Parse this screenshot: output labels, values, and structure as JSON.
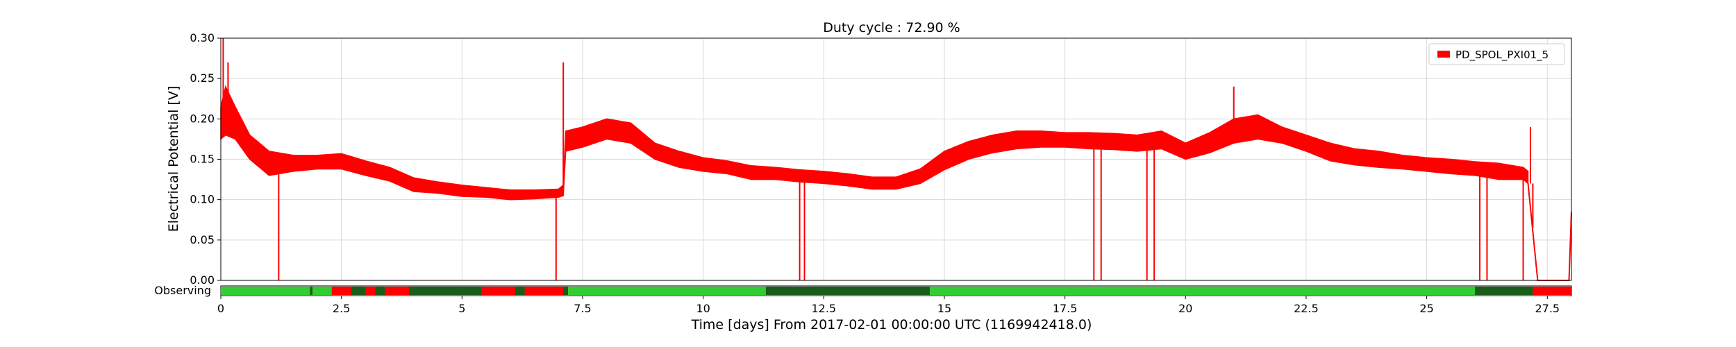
{
  "chart_data": {
    "type": "line",
    "title": "Duty cycle : 72.90 %",
    "xlabel": "Time [days] From 2017-02-01 00:00:00 UTC (1169942418.0)",
    "ylabel": "Electrical Potential [V]",
    "xlim": [
      0,
      28
    ],
    "ylim": [
      0,
      0.3
    ],
    "x_ticks": [
      0,
      2.5,
      5,
      7.5,
      10,
      12.5,
      15,
      17.5,
      20,
      22.5,
      25,
      27.5
    ],
    "x_tick_labels": [
      "0",
      "2.5",
      "5",
      "7.5",
      "10",
      "12.5",
      "15",
      "17.5",
      "20",
      "22.5",
      "25",
      "27.5"
    ],
    "y_ticks": [
      0,
      0.05,
      0.1,
      0.15,
      0.2,
      0.25,
      0.3
    ],
    "y_tick_labels": [
      "0.00",
      "0.05",
      "0.10",
      "0.15",
      "0.20",
      "0.25",
      "0.30"
    ],
    "grid": true,
    "legend_position": "top-right",
    "series": [
      {
        "name": "PD_SPOL_PXI01_5",
        "color": "#ff0000",
        "envelope": [
          [
            0.0,
            0.175,
            0.215
          ],
          [
            0.1,
            0.18,
            0.24
          ],
          [
            0.3,
            0.175,
            0.215
          ],
          [
            0.6,
            0.15,
            0.18
          ],
          [
            1.0,
            0.13,
            0.16
          ],
          [
            1.5,
            0.135,
            0.155
          ],
          [
            2.0,
            0.138,
            0.155
          ],
          [
            2.5,
            0.138,
            0.157
          ],
          [
            3.0,
            0.13,
            0.148
          ],
          [
            3.5,
            0.123,
            0.14
          ],
          [
            4.0,
            0.11,
            0.127
          ],
          [
            4.5,
            0.108,
            0.122
          ],
          [
            5.0,
            0.104,
            0.118
          ],
          [
            5.5,
            0.103,
            0.115
          ],
          [
            6.0,
            0.1,
            0.112
          ],
          [
            6.5,
            0.101,
            0.112
          ],
          [
            7.0,
            0.103,
            0.113
          ],
          [
            7.1,
            0.105,
            0.118
          ],
          [
            7.15,
            0.16,
            0.185
          ],
          [
            7.5,
            0.165,
            0.19
          ],
          [
            8.0,
            0.175,
            0.2
          ],
          [
            8.5,
            0.17,
            0.195
          ],
          [
            9.0,
            0.15,
            0.17
          ],
          [
            9.5,
            0.14,
            0.16
          ],
          [
            10.0,
            0.135,
            0.152
          ],
          [
            10.5,
            0.132,
            0.148
          ],
          [
            11.0,
            0.125,
            0.142
          ],
          [
            11.5,
            0.125,
            0.14
          ],
          [
            12.0,
            0.122,
            0.137
          ],
          [
            12.5,
            0.12,
            0.135
          ],
          [
            13.0,
            0.117,
            0.132
          ],
          [
            13.5,
            0.113,
            0.128
          ],
          [
            14.0,
            0.113,
            0.128
          ],
          [
            14.5,
            0.12,
            0.138
          ],
          [
            15.0,
            0.137,
            0.16
          ],
          [
            15.5,
            0.15,
            0.172
          ],
          [
            16.0,
            0.158,
            0.18
          ],
          [
            16.5,
            0.163,
            0.185
          ],
          [
            17.0,
            0.165,
            0.185
          ],
          [
            17.5,
            0.165,
            0.183
          ],
          [
            18.0,
            0.163,
            0.183
          ],
          [
            18.5,
            0.162,
            0.182
          ],
          [
            19.0,
            0.16,
            0.18
          ],
          [
            19.5,
            0.163,
            0.185
          ],
          [
            20.0,
            0.15,
            0.17
          ],
          [
            20.5,
            0.158,
            0.183
          ],
          [
            21.0,
            0.17,
            0.2
          ],
          [
            21.5,
            0.175,
            0.205
          ],
          [
            22.0,
            0.17,
            0.19
          ],
          [
            22.5,
            0.16,
            0.18
          ],
          [
            23.0,
            0.148,
            0.17
          ],
          [
            23.5,
            0.143,
            0.163
          ],
          [
            24.0,
            0.14,
            0.16
          ],
          [
            24.5,
            0.138,
            0.155
          ],
          [
            25.0,
            0.135,
            0.152
          ],
          [
            25.5,
            0.132,
            0.15
          ],
          [
            26.0,
            0.13,
            0.147
          ],
          [
            26.5,
            0.125,
            0.145
          ],
          [
            27.0,
            0.125,
            0.14
          ],
          [
            27.1,
            0.12,
            0.135
          ]
        ],
        "spikes": [
          [
            0.05,
            0.3
          ],
          [
            0.15,
            0.27
          ],
          [
            1.2,
            0.0
          ],
          [
            6.95,
            0.0
          ],
          [
            7.1,
            0.27
          ],
          [
            12.0,
            0.0
          ],
          [
            12.1,
            0.0
          ],
          [
            18.1,
            0.0
          ],
          [
            18.25,
            0.0
          ],
          [
            19.2,
            0.0
          ],
          [
            19.35,
            0.0
          ],
          [
            21.0,
            0.24
          ],
          [
            26.1,
            0.0
          ],
          [
            26.25,
            0.0
          ],
          [
            27.0,
            0.0
          ],
          [
            27.15,
            0.19
          ],
          [
            27.2,
            0.065
          ]
        ],
        "tail": [
          [
            27.3,
            0.0
          ],
          [
            27.95,
            0.0
          ],
          [
            28.0,
            0.085
          ]
        ]
      }
    ],
    "segment_row": {
      "label": "Observing",
      "colors": {
        "active": "#33cc33",
        "known": "#1a5c1a",
        "off": "#ff0000"
      },
      "segments": [
        [
          0.0,
          2.3,
          "active"
        ],
        [
          1.85,
          1.9,
          "known"
        ],
        [
          2.3,
          7.2,
          "known"
        ],
        [
          2.3,
          2.7,
          "off"
        ],
        [
          3.0,
          3.2,
          "off"
        ],
        [
          3.4,
          3.9,
          "off"
        ],
        [
          5.4,
          6.1,
          "off"
        ],
        [
          6.3,
          7.1,
          "off"
        ],
        [
          7.2,
          14.7,
          "active"
        ],
        [
          11.3,
          14.7,
          "known"
        ],
        [
          14.7,
          27.2,
          "active"
        ],
        [
          26.0,
          27.2,
          "known"
        ],
        [
          27.2,
          28.0,
          "off"
        ]
      ]
    }
  }
}
